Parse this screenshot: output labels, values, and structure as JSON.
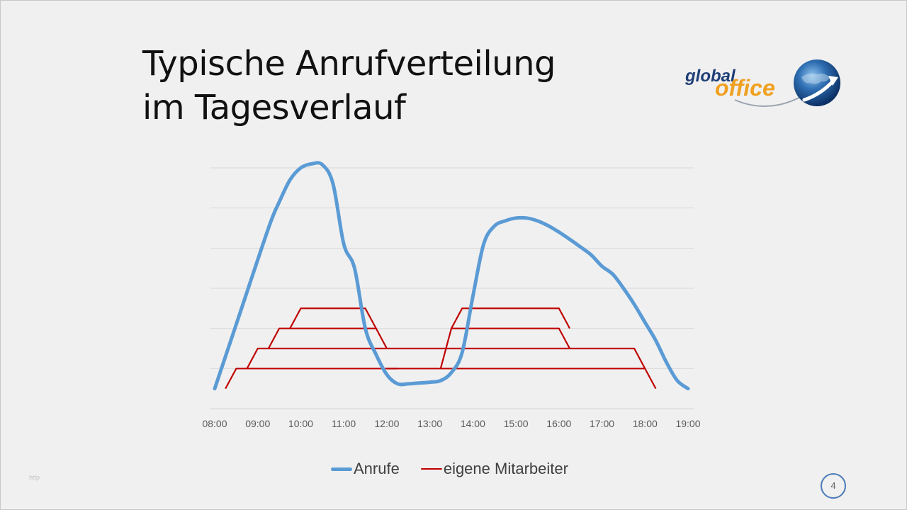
{
  "title": {
    "line1": "Typische Anrufverteilung",
    "line2": "im Tagesverlauf"
  },
  "logo": {
    "word1": "global",
    "word2": "office"
  },
  "slide_number": "4",
  "footnote": "http",
  "colors": {
    "calls": "#5b9bd5",
    "staff": "#c00000",
    "grid": "#d9d9d9"
  },
  "chart_data": {
    "type": "line",
    "x_axis": {
      "tick_labels": [
        "08:00",
        "09:00",
        "10:00",
        "11:00",
        "12:00",
        "13:00",
        "14:00",
        "15:00",
        "16:00",
        "17:00",
        "18:00",
        "19:00"
      ],
      "range": [
        8,
        19
      ]
    },
    "y_axis": {
      "range": [
        0,
        6
      ],
      "ticks": [
        0,
        1,
        2,
        3,
        4,
        5,
        6
      ],
      "tick_labels_visible": false
    },
    "grid": true,
    "legend_position": "bottom",
    "series": [
      {
        "name": "Anrufe",
        "color": "#5b9bd5",
        "points": [
          [
            8.0,
            0.5
          ],
          [
            8.5,
            2.1
          ],
          [
            9.25,
            4.5
          ],
          [
            9.5,
            5.15
          ],
          [
            9.75,
            5.7
          ],
          [
            10.0,
            6.0
          ],
          [
            10.25,
            6.1
          ],
          [
            10.5,
            6.08
          ],
          [
            10.75,
            5.6
          ],
          [
            11.0,
            4.1
          ],
          [
            11.25,
            3.5
          ],
          [
            11.5,
            2.0
          ],
          [
            11.75,
            1.35
          ],
          [
            12.0,
            0.85
          ],
          [
            12.25,
            0.62
          ],
          [
            12.5,
            0.62
          ],
          [
            12.75,
            0.64
          ],
          [
            13.0,
            0.66
          ],
          [
            13.25,
            0.7
          ],
          [
            13.5,
            0.9
          ],
          [
            13.75,
            1.4
          ],
          [
            14.0,
            2.8
          ],
          [
            14.25,
            4.1
          ],
          [
            14.5,
            4.55
          ],
          [
            14.75,
            4.68
          ],
          [
            15.0,
            4.75
          ],
          [
            15.25,
            4.75
          ],
          [
            15.5,
            4.68
          ],
          [
            15.75,
            4.56
          ],
          [
            16.0,
            4.4
          ],
          [
            16.25,
            4.22
          ],
          [
            16.5,
            4.03
          ],
          [
            16.75,
            3.83
          ],
          [
            17.0,
            3.55
          ],
          [
            17.25,
            3.35
          ],
          [
            17.5,
            3.0
          ],
          [
            17.75,
            2.6
          ],
          [
            18.0,
            2.15
          ],
          [
            18.25,
            1.7
          ],
          [
            18.5,
            1.15
          ],
          [
            18.75,
            0.7
          ],
          [
            19.0,
            0.5
          ]
        ]
      },
      {
        "name": "eigene Mitarbeiter",
        "color": "#c00000",
        "shifts": [
          {
            "level": 1,
            "points": [
              [
                8.25,
                0.5
              ],
              [
                8.5,
                1.0
              ],
              [
                18.0,
                1.0
              ],
              [
                18.25,
                0.5
              ]
            ]
          },
          {
            "level": 2,
            "points": [
              [
                8.75,
                1.0
              ],
              [
                9.0,
                1.5
              ],
              [
                17.75,
                1.5
              ],
              [
                18.0,
                1.0
              ]
            ]
          },
          {
            "level": 3,
            "points": [
              [
                9.25,
                1.5
              ],
              [
                9.5,
                2.0
              ],
              [
                11.75,
                2.0
              ],
              [
                12.0,
                1.5
              ]
            ]
          },
          {
            "level": 4,
            "points": [
              [
                9.75,
                2.0
              ],
              [
                10.0,
                2.5
              ],
              [
                11.5,
                2.5
              ],
              [
                11.75,
                2.0
              ]
            ]
          },
          {
            "level": 5,
            "points": [
              [
                12.0,
                1.0
              ],
              [
                12.25,
                1.0
              ]
            ]
          },
          {
            "level": 6,
            "points": [
              [
                13.25,
                1.0
              ],
              [
                13.5,
                2.0
              ],
              [
                16.0,
                2.0
              ],
              [
                16.25,
                1.5
              ]
            ]
          },
          {
            "level": 7,
            "points": [
              [
                13.5,
                2.0
              ],
              [
                13.75,
                2.5
              ],
              [
                16.0,
                2.5
              ],
              [
                16.25,
                2.0
              ]
            ]
          },
          {
            "level": 8,
            "points": [
              [
                12.0,
                1.0
              ],
              [
                12.25,
                1.0
              ]
            ]
          }
        ]
      }
    ]
  }
}
